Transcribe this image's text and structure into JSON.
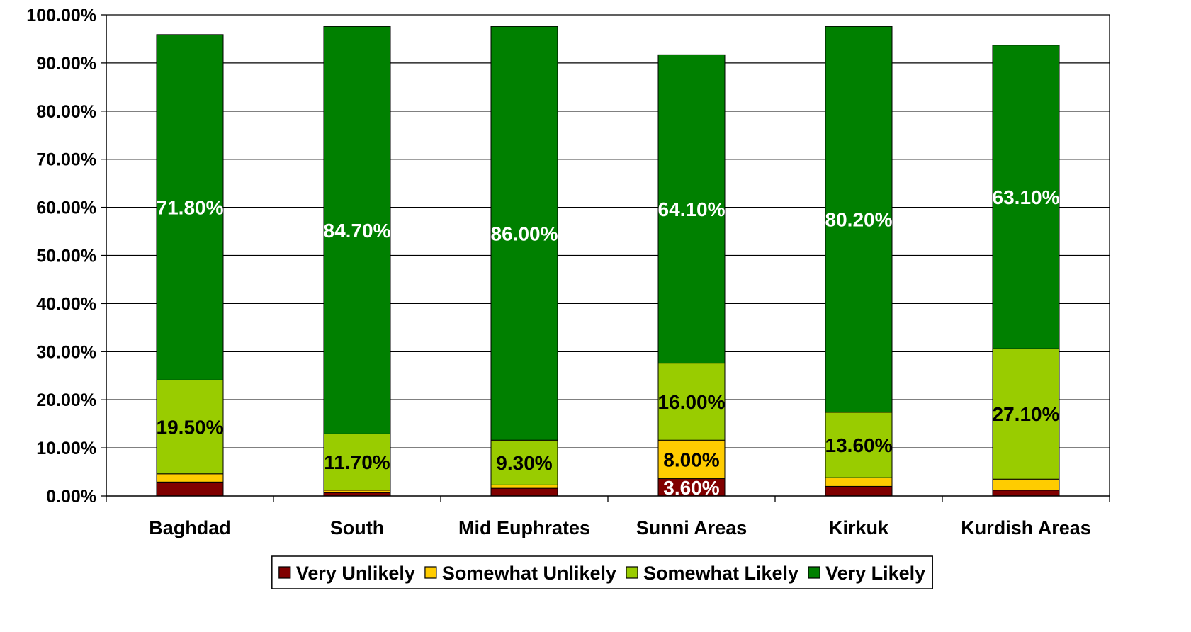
{
  "chart_data": {
    "type": "bar",
    "stacked": true,
    "categories": [
      "Baghdad",
      "South",
      "Mid Euphrates",
      "Sunni Areas",
      "Kirkuk",
      "Kurdish Areas"
    ],
    "series": [
      {
        "name": "Very Unlikely",
        "color": "#800000",
        "values": [
          2.9,
          0.7,
          1.6,
          3.6,
          2.0,
          1.2
        ],
        "labels": [
          "",
          "",
          "",
          "3.60%",
          "",
          ""
        ],
        "label_color": "#ffffff"
      },
      {
        "name": "Somewhat Unlikely",
        "color": "#ffcc00",
        "values": [
          1.7,
          0.5,
          0.7,
          8.0,
          1.8,
          2.3
        ],
        "labels": [
          "",
          "",
          "",
          "8.00%",
          "",
          ""
        ],
        "label_color": "#000000"
      },
      {
        "name": "Somewhat Likely",
        "color": "#99cc00",
        "values": [
          19.5,
          11.7,
          9.3,
          16.0,
          13.6,
          27.1
        ],
        "labels": [
          "19.50%",
          "11.70%",
          "9.30%",
          "16.00%",
          "13.60%",
          "27.10%"
        ],
        "label_color": "#000000"
      },
      {
        "name": "Very Likely",
        "color": "#008000",
        "values": [
          71.8,
          84.7,
          86.0,
          64.1,
          80.2,
          63.1
        ],
        "labels": [
          "71.80%",
          "84.70%",
          "86.00%",
          "64.10%",
          "80.20%",
          "63.10%"
        ],
        "label_color": "#ffffff"
      }
    ],
    "ylim": [
      0,
      100
    ],
    "yticks": [
      "0.00%",
      "10.00%",
      "20.00%",
      "30.00%",
      "40.00%",
      "50.00%",
      "60.00%",
      "70.00%",
      "80.00%",
      "90.00%",
      "100.00%"
    ],
    "grid": true,
    "legend_position": "bottom"
  }
}
